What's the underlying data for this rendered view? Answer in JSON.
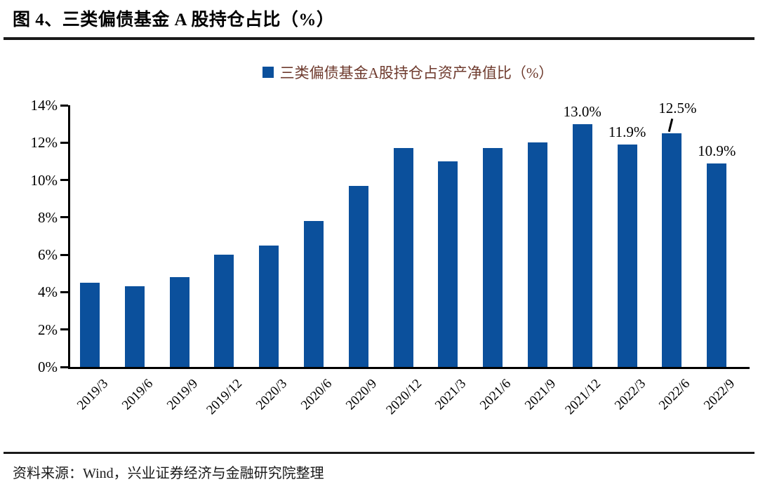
{
  "figure": {
    "title": "图 4、三类偏债基金 A 股持仓占比（%）",
    "source": "资料来源：Wind，兴业证券经济与金融研究院整理"
  },
  "chart_data": {
    "type": "bar",
    "title": "三类偏债基金A股持仓占资产净值比（%）",
    "legend": {
      "label": "三类偏债基金A股持仓占资产净值比（%）",
      "position": "top-center"
    },
    "categories": [
      "2019/3",
      "2019/6",
      "2019/9",
      "2019/12",
      "2020/3",
      "2020/6",
      "2020/9",
      "2020/12",
      "2021/3",
      "2021/6",
      "2021/9",
      "2021/12",
      "2022/3",
      "2022/6",
      "2022/9"
    ],
    "values": [
      4.5,
      4.3,
      4.8,
      6.0,
      6.5,
      7.8,
      9.7,
      11.7,
      11.0,
      11.7,
      12.0,
      13.0,
      11.9,
      12.5,
      10.9
    ],
    "bar_labels": [
      null,
      null,
      null,
      null,
      null,
      null,
      null,
      null,
      null,
      null,
      null,
      "13.0%",
      "11.9%",
      "12.5%",
      "10.9%"
    ],
    "raised_label_index": 13,
    "xlabel": "",
    "ylabel": "",
    "ylim": [
      0,
      14
    ],
    "ytick_step": 2,
    "ytick_labels": [
      "0%",
      "2%",
      "4%",
      "6%",
      "8%",
      "10%",
      "12%",
      "14%"
    ],
    "bar_color": "#0B509C",
    "grid": false
  }
}
